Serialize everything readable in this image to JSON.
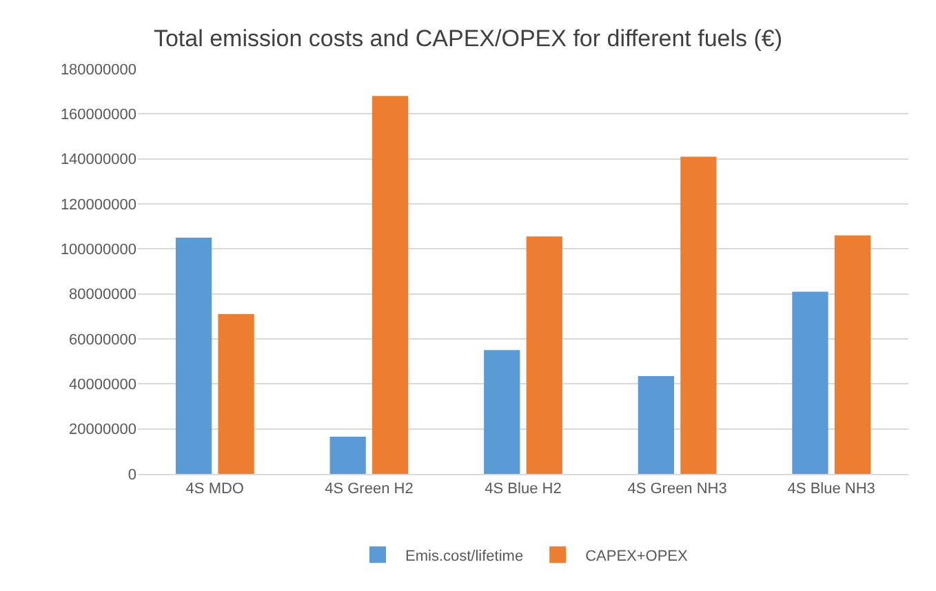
{
  "chart_data": {
    "type": "bar",
    "title": "Total emission costs and CAPEX/OPEX for different fuels (€)",
    "categories": [
      "4S MDO",
      "4S Green H2",
      "4S Blue H2",
      "4S Green NH3",
      "4S Blue NH3"
    ],
    "series": [
      {
        "name": "Emis.cost/lifetime",
        "color": "#5b9bd5",
        "values": [
          105000000,
          16500000,
          55000000,
          43500000,
          81000000
        ]
      },
      {
        "name": "CAPEX+OPEX",
        "color": "#ed7d31",
        "values": [
          71000000,
          168000000,
          105500000,
          141000000,
          106000000
        ]
      }
    ],
    "ylim": [
      0,
      180000000
    ],
    "yticks": [
      0,
      20000000,
      40000000,
      60000000,
      80000000,
      100000000,
      120000000,
      140000000,
      160000000,
      180000000
    ],
    "grid": "y",
    "legend": "bottom"
  }
}
